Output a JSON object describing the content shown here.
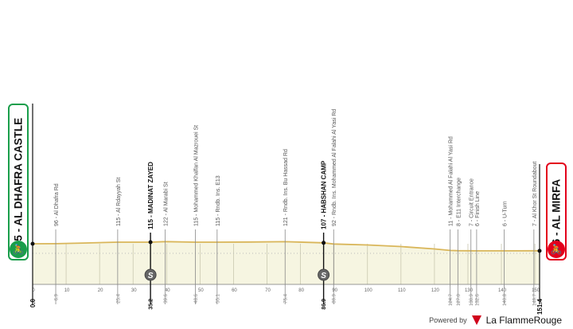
{
  "chart_data": {
    "type": "area",
    "xlim": [
      0,
      151.4
    ],
    "x_ticks": [
      0,
      10,
      20,
      30,
      40,
      50,
      60,
      70,
      80,
      90,
      100,
      110,
      120,
      130,
      140,
      150
    ],
    "start": {
      "km": "0.0",
      "label": "95 - AL DHAFRA CASTLE",
      "color": "#1a9e4b"
    },
    "finish": {
      "km": "151.4",
      "label": "6 - AL MIRFA",
      "color": "#e3001b"
    },
    "profile": [
      [
        0,
        95
      ],
      [
        6.9,
        96
      ],
      [
        15,
        104
      ],
      [
        25.4,
        115
      ],
      [
        35.2,
        115
      ],
      [
        39.6,
        122
      ],
      [
        48.6,
        115
      ],
      [
        55.1,
        115
      ],
      [
        65,
        117
      ],
      [
        75.4,
        121
      ],
      [
        86.9,
        107
      ],
      [
        89.9,
        92
      ],
      [
        100,
        80
      ],
      [
        110,
        60
      ],
      [
        120,
        30
      ],
      [
        124.7,
        11
      ],
      [
        127.0,
        8
      ],
      [
        130.9,
        7
      ],
      [
        132.6,
        6
      ],
      [
        140.8,
        6
      ],
      [
        149.7,
        7
      ],
      [
        151.4,
        6
      ]
    ],
    "points": [
      {
        "km": "6.9",
        "label": "96 - Al Dhafra Rd",
        "major": false
      },
      {
        "km": "25.4",
        "label": "115 - Al Rdayyah St",
        "major": false
      },
      {
        "km": "35.2",
        "label": "115 - MADINAT ZAYED",
        "major": true,
        "sprint": true
      },
      {
        "km": "39.6",
        "label": "122 - Al Marabi St",
        "major": false
      },
      {
        "km": "48.6",
        "label": "115 - Mohammed Khalfan Al Mazrouei St",
        "major": false
      },
      {
        "km": "55.1",
        "label": "115 - Rndb. Ins. E13",
        "major": false
      },
      {
        "km": "75.4",
        "label": "121 - Rndb. Ins. Bu Hassad Rd",
        "major": false
      },
      {
        "km": "86.9",
        "label": "107 - HABSHAN CAMP",
        "major": true,
        "sprint": true
      },
      {
        "km": "89.9",
        "label": "92 - Rndb. Ins. Mohammed Al Falahi Al Yasi Rd",
        "major": false
      },
      {
        "km": "124.7",
        "label": "11 - Mohammed Al Falahi Al Yasi Rd",
        "major": false
      },
      {
        "km": "127.0",
        "label": "8 - E11 Interchange",
        "major": false
      },
      {
        "km": "130.9",
        "label": "7 - Circuit Entrance",
        "major": false
      },
      {
        "km": "132.6",
        "label": "6 - Finish Line",
        "major": false
      },
      {
        "km": "140.8",
        "label": "6 - U-Turn",
        "major": false
      },
      {
        "km": "149.7",
        "label": "7 - Al Khor St Roundabout",
        "major": false
      }
    ],
    "sprint_icon": "S",
    "colors": {
      "fill": "#f6f5e1",
      "line": "#d9b65a",
      "grid": "#c9c8b0"
    }
  },
  "footer": {
    "powered": "Powered by",
    "brand": "La FlammeRouge"
  }
}
